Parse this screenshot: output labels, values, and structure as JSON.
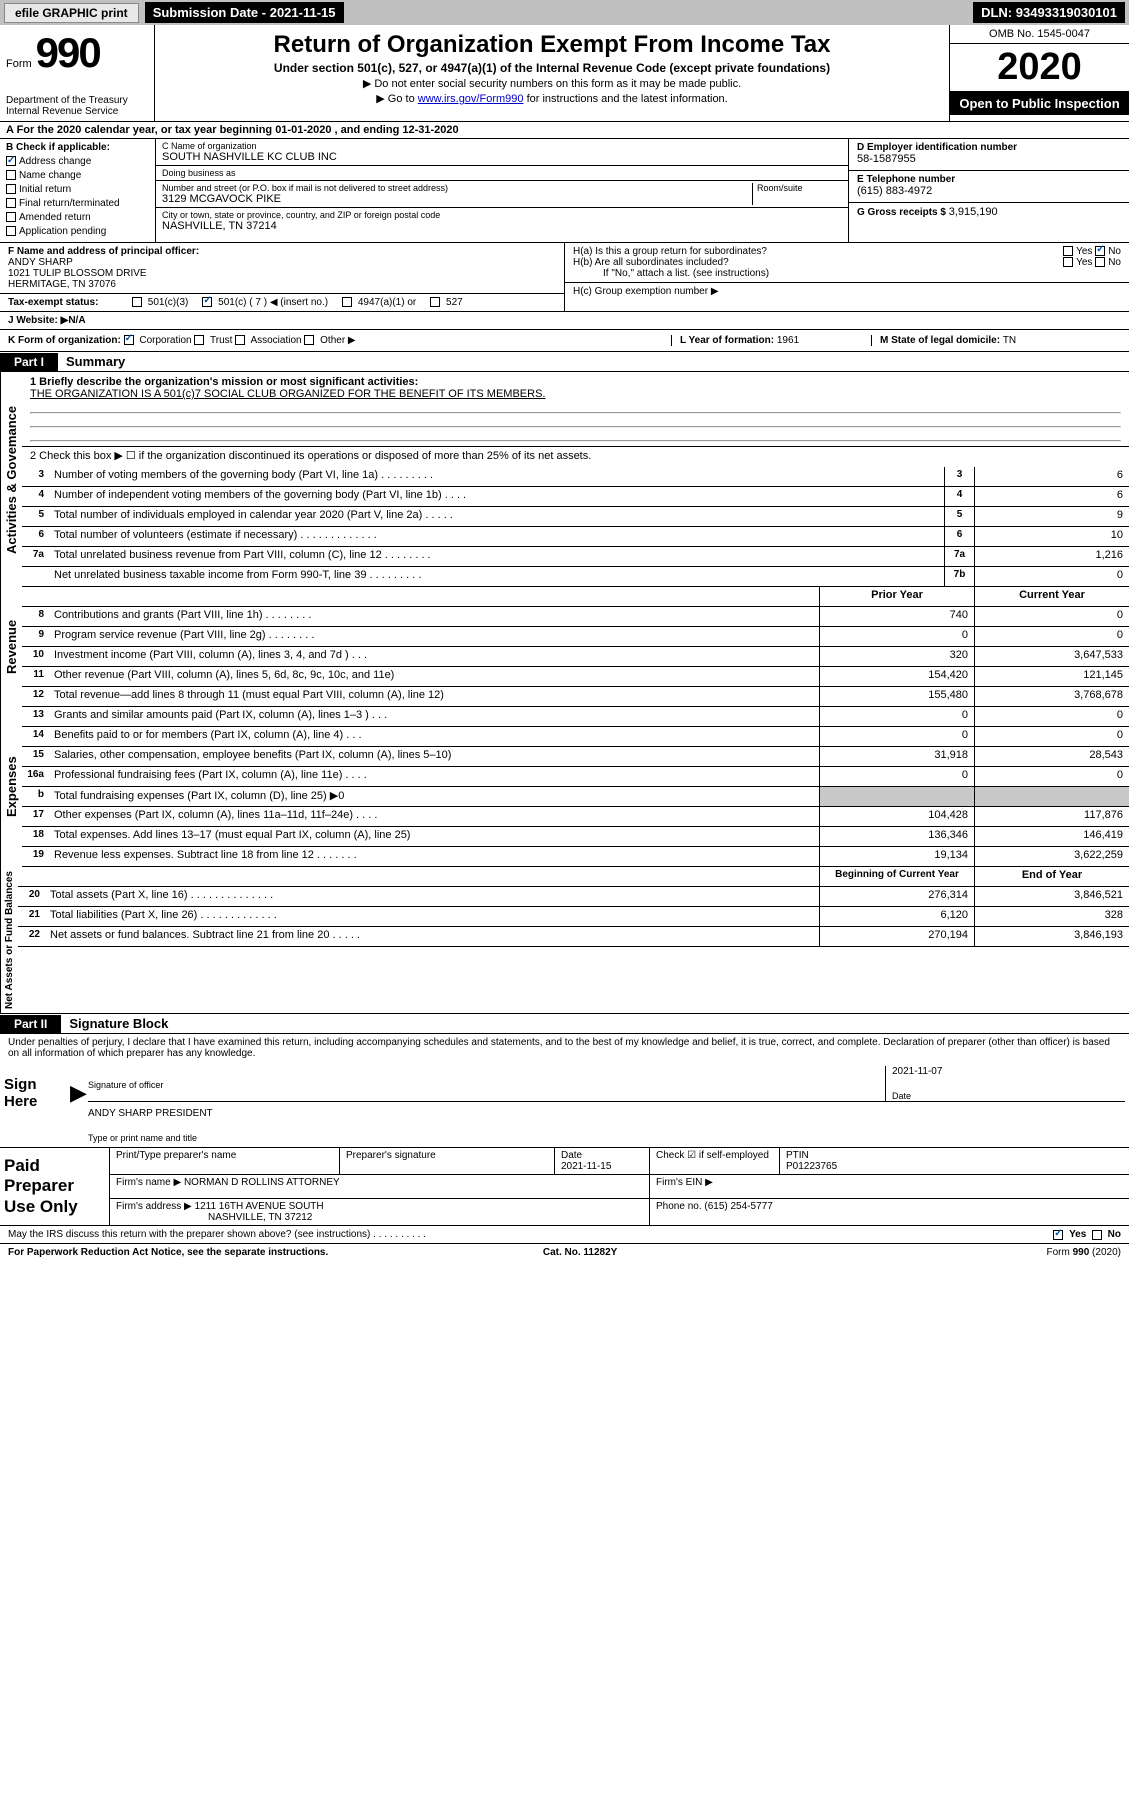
{
  "topbar": {
    "efile": "efile GRAPHIC print",
    "subdate_lbl": "Submission Date - ",
    "subdate": "2021-11-15",
    "dln_lbl": "DLN: ",
    "dln": "93493319030101"
  },
  "header": {
    "form_word": "Form",
    "form_num": "990",
    "title": "Return of Organization Exempt From Income Tax",
    "sub": "Under section 501(c), 527, or 4947(a)(1) of the Internal Revenue Code (except private foundations)",
    "note1": "▶ Do not enter social security numbers on this form as it may be made public.",
    "note2_pre": "▶ Go to ",
    "note2_link": "www.irs.gov/Form990",
    "note2_post": " for instructions and the latest information.",
    "dept": "Department of the Treasury\nInternal Revenue Service",
    "omb": "OMB No. 1545-0047",
    "year": "2020",
    "open": "Open to Public Inspection"
  },
  "lineA": "A For the 2020 calendar year, or tax year beginning 01-01-2020    , and ending 12-31-2020",
  "colB": {
    "hdr": "B Check if applicable:",
    "items": [
      "Address change",
      "Name change",
      "Initial return",
      "Final return/terminated",
      "Amended return",
      "Application pending"
    ]
  },
  "colC": {
    "name_lbl": "C Name of organization",
    "name": "SOUTH NASHVILLE KC CLUB INC",
    "dba_lbl": "Doing business as",
    "dba": "",
    "addr_lbl": "Number and street (or P.O. box if mail is not delivered to street address)",
    "room_lbl": "Room/suite",
    "addr": "3129 MCGAVOCK PIKE",
    "city_lbl": "City or town, state or province, country, and ZIP or foreign postal code",
    "city": "NASHVILLE, TN  37214"
  },
  "colD": {
    "ein_lbl": "D Employer identification number",
    "ein": "58-1587955",
    "tel_lbl": "E Telephone number",
    "tel": "(615) 883-4972",
    "gross_lbl": "G Gross receipts $ ",
    "gross": "3,915,190"
  },
  "colF": {
    "lbl": "F  Name and address of principal officer:",
    "name": "ANDY SHARP",
    "addr1": "1021 TULIP BLOSSOM DRIVE",
    "addr2": "HERMITAGE, TN  37076"
  },
  "colH": {
    "a": "H(a)  Is this a group return for subordinates?",
    "b": "H(b)  Are all subordinates included?",
    "note": "If \"No,\" attach a list. (see instructions)",
    "c": "H(c)  Group exemption number ▶"
  },
  "status": {
    "lbl": "Tax-exempt status:",
    "o1": "501(c)(3)",
    "o2": "501(c) ( 7 ) ◀ (insert no.)",
    "o3": "4947(a)(1) or",
    "o4": "527"
  },
  "website": {
    "lbl": "J   Website: ▶",
    "val": "  N/A"
  },
  "rowK": {
    "k": "K Form of organization:",
    "opts": [
      "Corporation",
      "Trust",
      "Association",
      "Other ▶"
    ],
    "l": "L Year of formation: ",
    "lval": "1961",
    "m": "M State of legal domicile: ",
    "mval": "TN"
  },
  "part1": {
    "hdr": "Part I",
    "title": "Summary"
  },
  "summary": {
    "q1": "1  Briefly describe the organization's mission or most significant activities:",
    "mission": "THE ORGANIZATION IS A 501(c)7 SOCIAL CLUB ORGANIZED FOR THE BENEFIT OF ITS MEMBERS.",
    "q2": "2   Check this box ▶ ☐  if the organization discontinued its operations or disposed of more than 25% of its net assets.",
    "rows_gov": [
      {
        "n": "3",
        "d": "Number of voting members of the governing body (Part VI, line 1a)  .   .   .   .   .   .   .   .   .",
        "box": "3",
        "v": "6"
      },
      {
        "n": "4",
        "d": "Number of independent voting members of the governing body (Part VI, line 1b)   .   .   .   .",
        "box": "4",
        "v": "6"
      },
      {
        "n": "5",
        "d": "Total number of individuals employed in calendar year 2020 (Part V, line 2a)   .   .   .   .   .",
        "box": "5",
        "v": "9"
      },
      {
        "n": "6",
        "d": "Total number of volunteers (estimate if necessary)   .   .   .   .   .   .   .   .   .   .   .   .   .",
        "box": "6",
        "v": "10"
      },
      {
        "n": "7a",
        "d": "Total unrelated business revenue from Part VIII, column (C), line 12   .   .   .   .   .   .   .   .",
        "box": "7a",
        "v": "1,216"
      },
      {
        "n": "",
        "d": "Net unrelated business taxable income from Form 990-T, line 39   .   .   .   .   .   .   .   .   .",
        "box": "7b",
        "v": "0"
      }
    ],
    "colhdr": {
      "c1": "Prior Year",
      "c2": "Current Year"
    },
    "rows_rev": [
      {
        "n": "8",
        "d": "Contributions and grants (Part VIII, line 1h)   .   .   .   .   .   .   .   .",
        "v1": "740",
        "v2": "0"
      },
      {
        "n": "9",
        "d": "Program service revenue (Part VIII, line 2g)   .   .   .   .   .   .   .   .",
        "v1": "0",
        "v2": "0"
      },
      {
        "n": "10",
        "d": "Investment income (Part VIII, column (A), lines 3, 4, and 7d )   .   .   .",
        "v1": "320",
        "v2": "3,647,533"
      },
      {
        "n": "11",
        "d": "Other revenue (Part VIII, column (A), lines 5, 6d, 8c, 9c, 10c, and 11e)",
        "v1": "154,420",
        "v2": "121,145"
      },
      {
        "n": "12",
        "d": "Total revenue—add lines 8 through 11 (must equal Part VIII, column (A), line 12)",
        "v1": "155,480",
        "v2": "3,768,678"
      }
    ],
    "rows_exp": [
      {
        "n": "13",
        "d": "Grants and similar amounts paid (Part IX, column (A), lines 1–3 )   .   .   .",
        "v1": "0",
        "v2": "0"
      },
      {
        "n": "14",
        "d": "Benefits paid to or for members (Part IX, column (A), line 4)   .   .   .",
        "v1": "0",
        "v2": "0"
      },
      {
        "n": "15",
        "d": "Salaries, other compensation, employee benefits (Part IX, column (A), lines 5–10)",
        "v1": "31,918",
        "v2": "28,543"
      },
      {
        "n": "16a",
        "d": "Professional fundraising fees (Part IX, column (A), line 11e)   .   .   .   .",
        "v1": "0",
        "v2": "0"
      },
      {
        "n": "b",
        "d": "Total fundraising expenses (Part IX, column (D), line 25) ▶0",
        "v1": "",
        "v2": "",
        "gray": true
      },
      {
        "n": "17",
        "d": "Other expenses (Part IX, column (A), lines 11a–11d, 11f–24e)   .   .   .   .",
        "v1": "104,428",
        "v2": "117,876"
      },
      {
        "n": "18",
        "d": "Total expenses. Add lines 13–17 (must equal Part IX, column (A), line 25)",
        "v1": "136,346",
        "v2": "146,419"
      },
      {
        "n": "19",
        "d": "Revenue less expenses. Subtract line 18 from line 12   .   .   .   .   .   .   .",
        "v1": "19,134",
        "v2": "3,622,259"
      }
    ],
    "colhdr2": {
      "c1": "Beginning of Current Year",
      "c2": "End of Year"
    },
    "rows_net": [
      {
        "n": "20",
        "d": "Total assets (Part X, line 16)   .   .   .   .   .   .   .   .   .   .   .   .   .   .",
        "v1": "276,314",
        "v2": "3,846,521"
      },
      {
        "n": "21",
        "d": "Total liabilities (Part X, line 26)   .   .   .   .   .   .   .   .   .   .   .   .   .",
        "v1": "6,120",
        "v2": "328"
      },
      {
        "n": "22",
        "d": "Net assets or fund balances. Subtract line 21 from line 20   .   .   .   .   .",
        "v1": "270,194",
        "v2": "3,846,193"
      }
    ],
    "vlabels": {
      "gov": "Activities & Govemance",
      "rev": "Revenue",
      "exp": "Expenses",
      "net": "Net Assets or Fund Balances"
    }
  },
  "part2": {
    "hdr": "Part II",
    "title": "Signature Block",
    "text": "Under penalties of perjury, I declare that I have examined this return, including accompanying schedules and statements, and to the best of my knowledge and belief, it is true, correct, and complete. Declaration of preparer (other than officer) is based on all information of which preparer has any knowledge."
  },
  "sign": {
    "lbl": "Sign Here",
    "l1": "Signature of officer",
    "date": "2021-11-07",
    "datelbl": "Date",
    "name": "ANDY SHARP  PRESIDENT",
    "l2": "Type or print name and title"
  },
  "paid": {
    "lbl": "Paid Preparer Use Only",
    "h1": "Print/Type preparer's name",
    "h2": "Preparer's signature",
    "h3": "Date",
    "date": "2021-11-15",
    "h4": "Check ☑ if self-employed",
    "h5": "PTIN",
    "ptin": "P01223765",
    "firm_lbl": "Firm's name    ▶",
    "firm": "NORMAN D ROLLINS ATTORNEY",
    "ein_lbl": "Firm's EIN ▶",
    "addr_lbl": "Firm's address ▶",
    "addr1": "1211 16TH AVENUE SOUTH",
    "addr2": "NASHVILLE, TN  37212",
    "ph_lbl": "Phone no. ",
    "ph": "(615) 254-5777"
  },
  "foot": {
    "q": "May the IRS discuss this return with the preparer shown above? (see instructions)   .   .   .   .   .   .   .   .   .   .",
    "yes": "Yes",
    "no": "No"
  },
  "final": {
    "l": "For Paperwork Reduction Act Notice, see the separate instructions.",
    "m": "Cat. No. 11282Y",
    "r": "Form 990 (2020)"
  }
}
